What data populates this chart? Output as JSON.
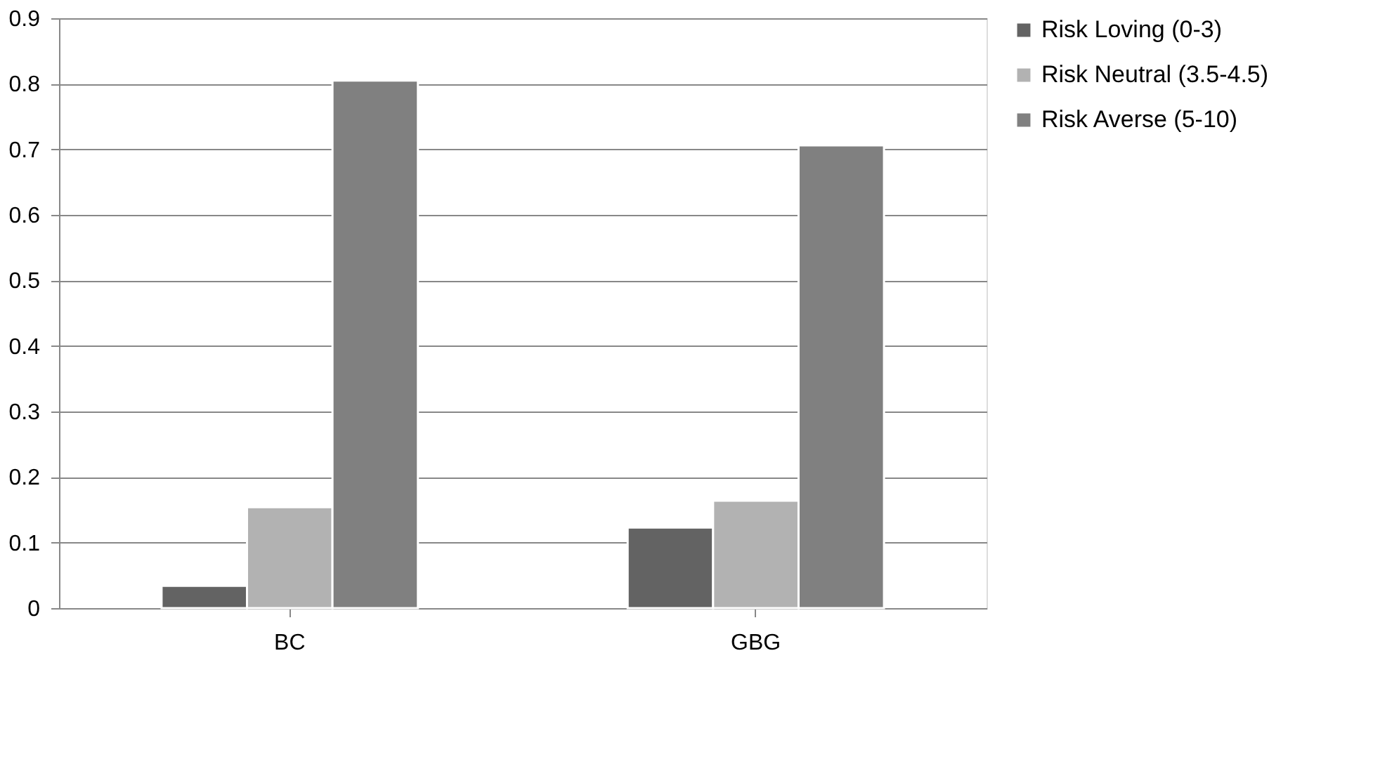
{
  "chart_data": {
    "type": "bar",
    "categories": [
      "BC",
      "GBG"
    ],
    "series": [
      {
        "name": "Risk Loving (0-3)",
        "color": "#636363",
        "values": [
          0.034,
          0.123
        ]
      },
      {
        "name": "Risk Neutral (3.5-4.5)",
        "color": "#b2b2b2",
        "values": [
          0.154,
          0.164
        ]
      },
      {
        "name": "Risk Averse (5-10)",
        "color": "#808080",
        "values": [
          0.805,
          0.706
        ]
      }
    ],
    "ylim": [
      0,
      0.9
    ],
    "yticks": [
      0,
      0.1,
      0.2,
      0.3,
      0.4,
      0.5,
      0.6,
      0.7,
      0.8,
      0.9
    ],
    "grid": "y",
    "legend": "right"
  }
}
